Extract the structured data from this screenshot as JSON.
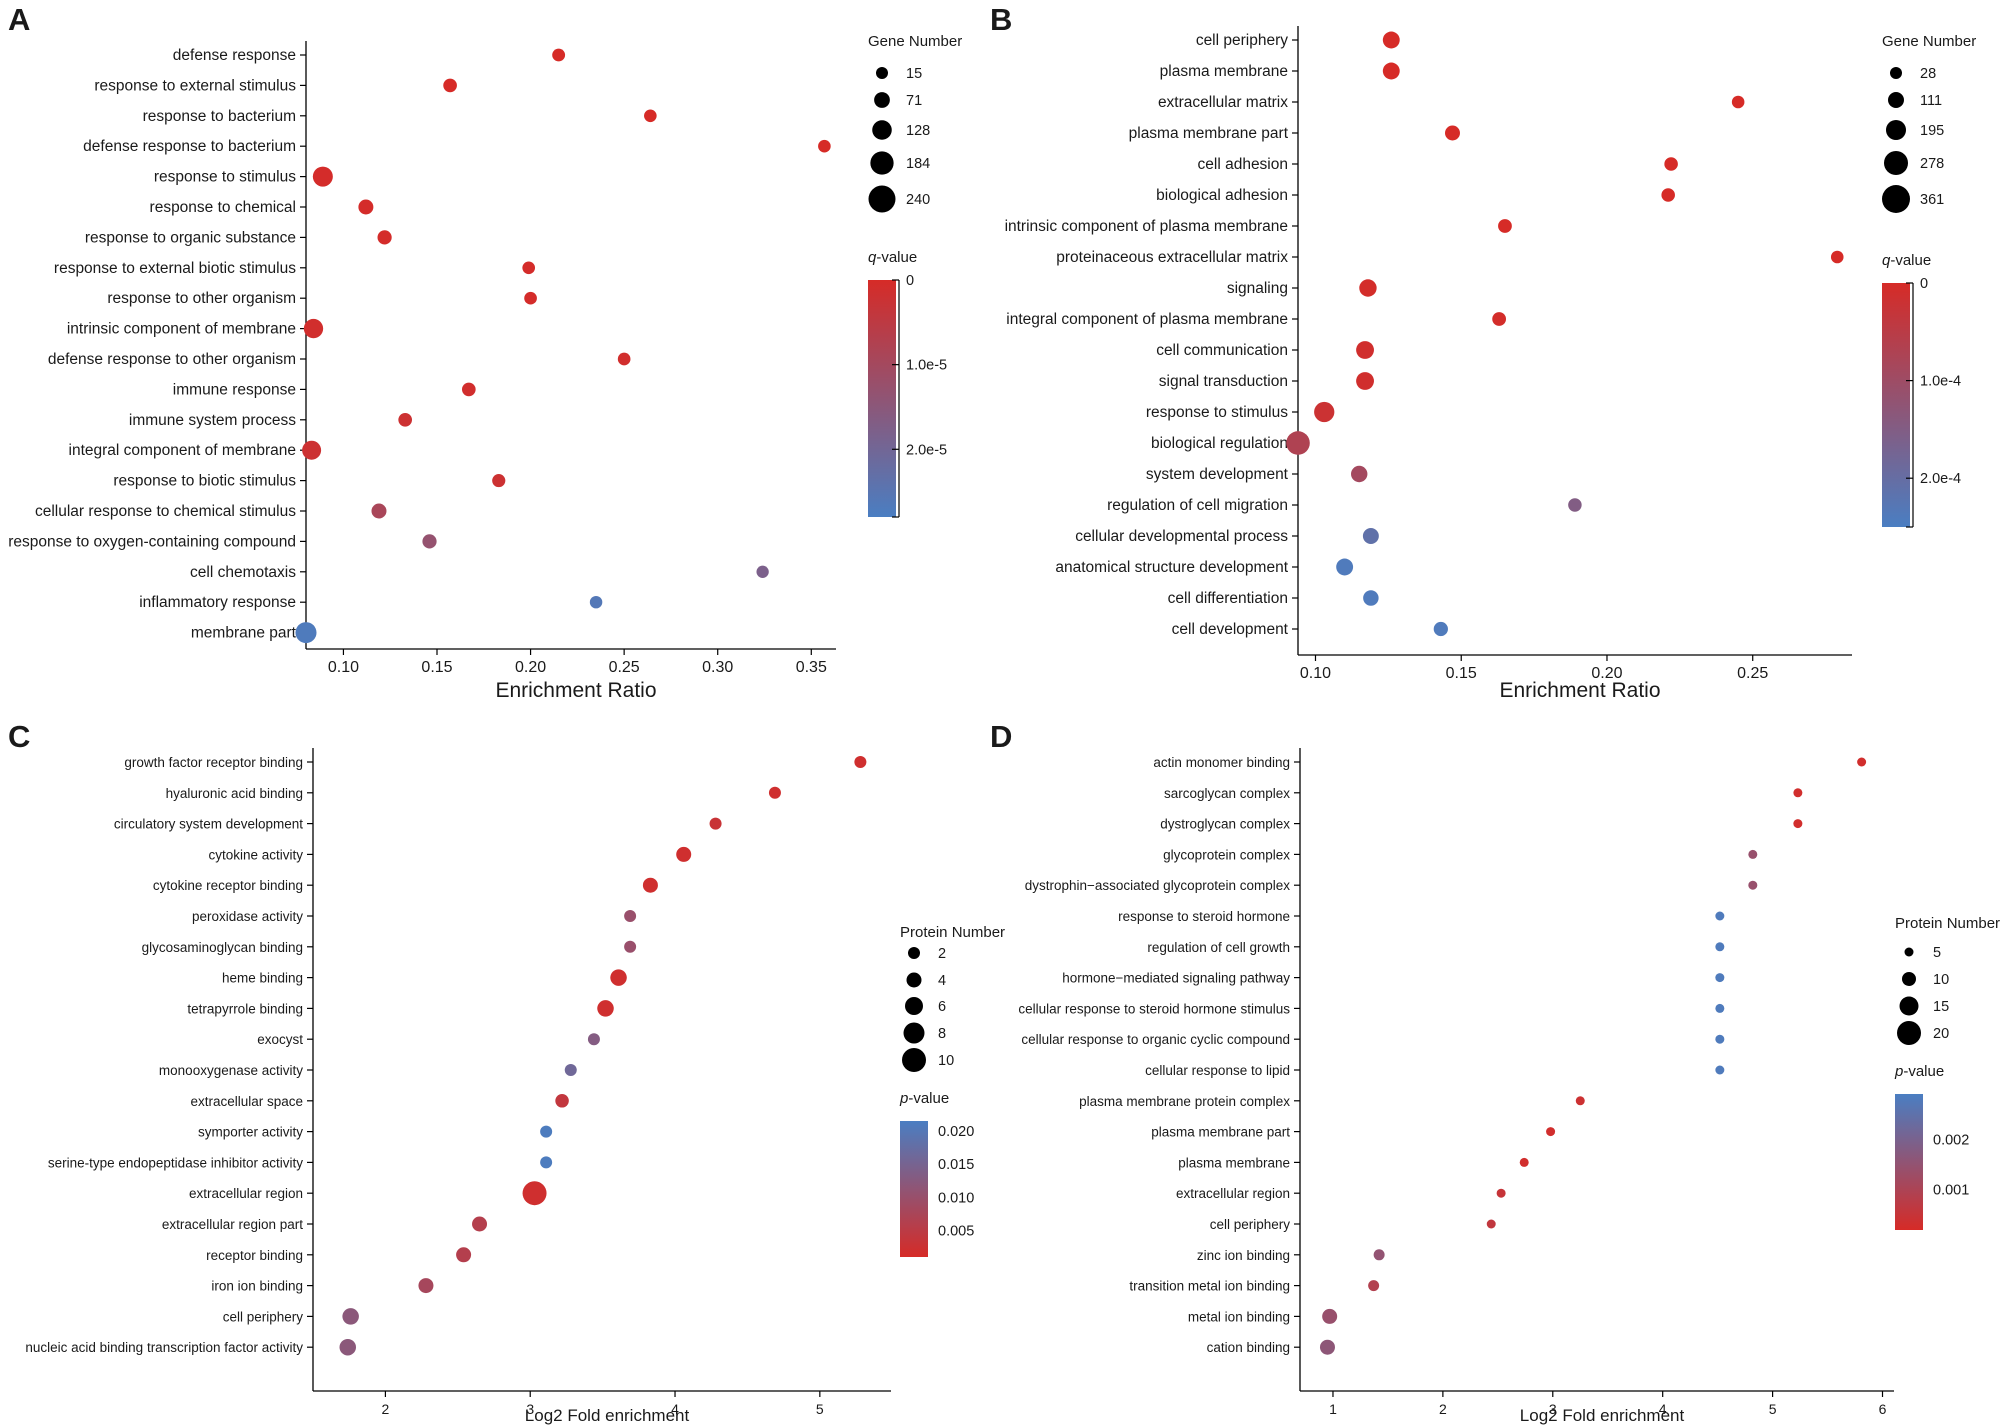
{
  "colors": {
    "high": "#d62b27",
    "low": "#4a7ec2",
    "axis": "#000000"
  },
  "chart_data": [
    {
      "panel": "A",
      "type": "scatter",
      "xlabel": "Enrichment Ratio",
      "xlim": [
        0.08,
        0.36
      ],
      "xticks": [
        0.1,
        0.15,
        0.2,
        0.25,
        0.3,
        0.35
      ],
      "xtick_labels": [
        "0.10",
        "0.15",
        "0.20",
        "0.25",
        "0.30",
        "0.35"
      ],
      "size_legend": {
        "title": "Gene Number",
        "values": [
          15,
          71,
          128,
          184,
          240
        ],
        "labels": [
          "15",
          "71",
          "128",
          "184",
          "240"
        ]
      },
      "color_legend": {
        "title_prefix": "q",
        "title_suffix": "-value",
        "min": 0,
        "max": 2.8e-05,
        "ticks": [
          0,
          1e-05,
          2e-05
        ],
        "labels": [
          "0",
          "1.0e-5",
          "2.0e-5"
        ],
        "reversed": false
      },
      "categories": [
        "defense response",
        "response to external stimulus",
        "response to bacterium",
        "defense response to bacterium",
        "response to stimulus",
        "response to chemical",
        "response to organic substance",
        "response to external biotic stimulus",
        "response to other organism",
        "intrinsic component of membrane",
        "defense response to other organism",
        "immune response",
        "immune system process",
        "integral component of membrane",
        "response to biotic stimulus",
        "cellular response to chemical stimulus",
        "response to oxygen-containing compound",
        "cell chemotaxis",
        "inflammatory response",
        "membrane part"
      ],
      "x": [
        0.215,
        0.157,
        0.264,
        0.357,
        0.089,
        0.112,
        0.122,
        0.199,
        0.2,
        0.084,
        0.25,
        0.167,
        0.133,
        0.083,
        0.183,
        0.119,
        0.146,
        0.324,
        0.235,
        0.08
      ],
      "size": [
        28,
        40,
        24,
        24,
        135,
        60,
        48,
        25,
        25,
        125,
        25,
        40,
        40,
        120,
        32,
        60,
        48,
        20,
        22,
        150
      ],
      "color": [
        0,
        0,
        0,
        0,
        5e-07,
        5e-07,
        5e-07,
        5e-07,
        5e-07,
        1e-06,
        1e-06,
        1e-06,
        2e-06,
        2e-06,
        2e-06,
        9e-06,
        1.3e-05,
        1.8e-05,
        2.6e-05,
        2.7e-05
      ]
    },
    {
      "panel": "B",
      "type": "scatter",
      "xlabel": "Enrichment Ratio",
      "xlim": [
        0.094,
        0.282
      ],
      "xticks": [
        0.1,
        0.15,
        0.2,
        0.25
      ],
      "xtick_labels": [
        "0.10",
        "0.15",
        "0.20",
        "0.25"
      ],
      "size_legend": {
        "title": "Gene Number",
        "values": [
          28,
          111,
          195,
          278,
          361
        ],
        "labels": [
          "28",
          "111",
          "195",
          "278",
          "361"
        ]
      },
      "color_legend": {
        "title_prefix": "q",
        "title_suffix": "-value",
        "min": 0,
        "max": 0.00025,
        "ticks": [
          0,
          0.0001,
          0.0002
        ],
        "labels": [
          "0",
          "1.0e-4",
          "2.0e-4"
        ],
        "reversed": false
      },
      "categories": [
        "cell periphery",
        "plasma membrane",
        "extracellular matrix",
        "plasma membrane part",
        "cell adhesion",
        "biological adhesion",
        "intrinsic component of plasma membrane",
        "proteinaceous extracellular matrix",
        "signaling",
        "integral component of plasma membrane",
        "cell communication",
        "signal transduction",
        "response to stimulus",
        "biological regulation",
        "system development",
        "regulation of cell migration",
        "cellular developmental process",
        "anatomical structure development",
        "cell differentiation",
        "cell development"
      ],
      "x": [
        0.126,
        0.126,
        0.245,
        0.147,
        0.222,
        0.221,
        0.165,
        0.279,
        0.118,
        0.163,
        0.117,
        0.117,
        0.103,
        0.094,
        0.115,
        0.189,
        0.119,
        0.11,
        0.119,
        0.143
      ],
      "size": [
        130,
        130,
        40,
        90,
        60,
        60,
        65,
        40,
        140,
        65,
        150,
        150,
        200,
        270,
        120,
        60,
        110,
        130,
        100,
        75
      ],
      "color": [
        0,
        0,
        0,
        0,
        0,
        0,
        0,
        0,
        5e-06,
        5e-06,
        1e-05,
        1e-05,
        2e-05,
        7e-05,
        9e-05,
        0.00015,
        0.00021,
        0.00024,
        0.00024,
        0.00024
      ]
    },
    {
      "panel": "C",
      "type": "scatter",
      "xlabel": "Log2 Fold enrichment",
      "xlim": [
        1.5,
        5.45
      ],
      "xticks": [
        2,
        3,
        4,
        5
      ],
      "xtick_labels": [
        "2",
        "3",
        "4",
        "5"
      ],
      "size_legend": {
        "title": "Protein Number",
        "values": [
          2,
          4,
          6,
          8,
          10
        ],
        "labels": [
          "2",
          "4",
          "6",
          "8",
          "10"
        ]
      },
      "color_legend": {
        "title_prefix": "p",
        "title_suffix": "-value",
        "min": 0.001,
        "max": 0.0215,
        "ticks": [
          0.02,
          0.015,
          0.01,
          0.005
        ],
        "labels": [
          "0.020",
          "0.015",
          "0.010",
          "0.005"
        ],
        "reversed": true
      },
      "categories": [
        "growth factor receptor binding",
        "hyaluronic acid binding",
        "circulatory system development",
        "cytokine activity",
        "cytokine receptor binding",
        "peroxidase activity",
        "glycosaminoglycan binding",
        "heme binding",
        "tetrapyrrole binding",
        "exocyst",
        "monooxygenase activity",
        "extracellular space",
        "symporter activity",
        "serine-type endopeptidase inhibitor activity",
        "extracellular region",
        "extracellular region part",
        "receptor binding",
        "iron ion binding",
        "cell periphery",
        "nucleic acid binding transcription factor activity"
      ],
      "x": [
        5.28,
        4.69,
        4.28,
        4.06,
        3.83,
        3.69,
        3.69,
        3.61,
        3.52,
        3.44,
        3.28,
        3.22,
        3.11,
        3.11,
        3.03,
        2.65,
        2.54,
        2.28,
        1.76,
        1.74
      ],
      "size": [
        2,
        2,
        2,
        4,
        4,
        2,
        2,
        5,
        5,
        2,
        2,
        3,
        2,
        2,
        10,
        4,
        4,
        4,
        5,
        5
      ],
      "color": [
        0.002,
        0.002,
        0.003,
        0.002,
        0.002,
        0.01,
        0.01,
        0.002,
        0.002,
        0.013,
        0.016,
        0.004,
        0.021,
        0.021,
        0.002,
        0.006,
        0.006,
        0.008,
        0.012,
        0.012
      ]
    },
    {
      "panel": "D",
      "type": "scatter",
      "xlabel": "Log2 Fold enrichment",
      "xlim": [
        0.7,
        6.05
      ],
      "xticks": [
        1,
        2,
        3,
        4,
        5,
        6
      ],
      "xtick_labels": [
        "1",
        "2",
        "3",
        "4",
        "5",
        "6"
      ],
      "size_legend": {
        "title": "Protein Number",
        "values": [
          5,
          10,
          15,
          20
        ],
        "labels": [
          "5",
          "10",
          "15",
          "20"
        ]
      },
      "color_legend": {
        "title_prefix": "p",
        "title_suffix": "-value",
        "min": 0.0002,
        "max": 0.0029,
        "ticks": [
          0.002,
          0.001
        ],
        "labels": [
          "0.002",
          "0.001"
        ],
        "reversed": true
      },
      "categories": [
        "actin monomer binding",
        "sarcoglycan complex",
        "dystroglycan complex",
        "glycoprotein complex",
        "dystrophin−associated glycoprotein complex",
        "response to steroid hormone",
        "regulation of cell growth",
        "hormone−mediated signaling pathway",
        "cellular response to steroid hormone stimulus",
        "cellular response to organic cyclic compound",
        "cellular response to lipid",
        "plasma membrane protein complex",
        "plasma membrane part",
        "plasma membrane",
        "extracellular region",
        "cell periphery",
        "zinc ion binding",
        "transition metal ion binding",
        "metal ion binding",
        "cation binding"
      ],
      "x": [
        5.81,
        5.23,
        5.23,
        4.82,
        4.82,
        4.52,
        4.52,
        4.52,
        4.52,
        4.52,
        4.52,
        3.25,
        2.98,
        2.74,
        2.53,
        2.44,
        1.42,
        1.37,
        0.97,
        0.95
      ],
      "size": [
        2,
        2,
        2,
        2,
        2,
        2,
        2,
        2,
        2,
        2,
        2,
        3,
        3,
        4,
        4,
        4,
        7,
        7,
        11,
        11
      ],
      "color": [
        0.0003,
        0.0003,
        0.0003,
        0.0014,
        0.0014,
        0.0028,
        0.0028,
        0.0028,
        0.0028,
        0.0028,
        0.0028,
        0.0004,
        0.0003,
        0.0003,
        0.0005,
        0.0006,
        0.0015,
        0.0009,
        0.0014,
        0.0016
      ]
    }
  ]
}
